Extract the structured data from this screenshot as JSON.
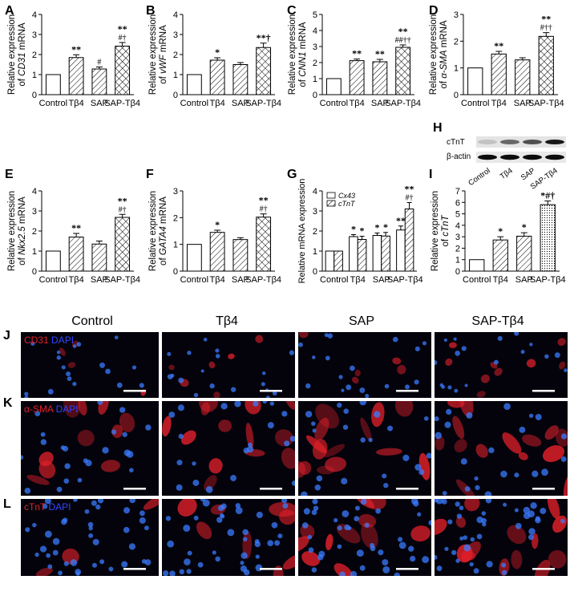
{
  "colors": {
    "bar_edge": "#000000",
    "bar_fill": "#ffffff",
    "cell_bg": "#04030c",
    "stain_red": "#e0202a",
    "stain_blue": "#3344ff",
    "nuclei": "#3a7cff"
  },
  "chart_data": [
    {
      "panel": "A",
      "type": "bar",
      "categories": [
        "Control",
        "Tβ4",
        "SAP",
        "SAP-Tβ4"
      ],
      "values": [
        1.0,
        1.85,
        1.28,
        2.42
      ],
      "errors": [
        0,
        0.14,
        0.1,
        0.18
      ],
      "patterns": [
        "none",
        "hatch",
        "hatch",
        "cross"
      ],
      "marks": [
        "",
        "**",
        "#",
        "**\n#†"
      ],
      "ylabel_pre": "Relative expression",
      "ylabel_of": "of ",
      "ylabel_gene": "CD31",
      "ylabel_post": " mRNA",
      "ylim": [
        0,
        4
      ],
      "yticks": [
        0,
        1,
        2,
        3,
        4
      ]
    },
    {
      "panel": "B",
      "type": "bar",
      "categories": [
        "Control",
        "Tβ4",
        "SAP",
        "SAP-Tβ4"
      ],
      "values": [
        1.0,
        1.72,
        1.5,
        2.35
      ],
      "errors": [
        0,
        0.12,
        0.1,
        0.22
      ],
      "patterns": [
        "none",
        "hatch",
        "hatch",
        "cross"
      ],
      "marks": [
        "",
        "*",
        "",
        "**†"
      ],
      "ylabel_pre": "Relative expression",
      "ylabel_of": "of ",
      "ylabel_gene": "vWF",
      "ylabel_post": " mRNA",
      "ylim": [
        0,
        4
      ],
      "yticks": [
        0,
        1,
        2,
        3,
        4
      ]
    },
    {
      "panel": "C",
      "type": "bar",
      "categories": [
        "Control",
        "Tβ4",
        "SAP",
        "SAP-Tβ4"
      ],
      "values": [
        1.0,
        2.12,
        2.05,
        2.95
      ],
      "errors": [
        0,
        0.1,
        0.15,
        0.15
      ],
      "patterns": [
        "none",
        "hatch",
        "hatch",
        "cross"
      ],
      "marks": [
        "",
        "**",
        "**",
        "**\n##††"
      ],
      "ylabel_pre": "Relative expression",
      "ylabel_of": "of ",
      "ylabel_gene": "CNN1",
      "ylabel_post": " mRNA",
      "ylim": [
        0,
        5
      ],
      "yticks": [
        0,
        1,
        2,
        3,
        4,
        5
      ]
    },
    {
      "panel": "D",
      "type": "bar",
      "categories": [
        "Control",
        "Tβ4",
        "SAP",
        "SAP-Tβ4"
      ],
      "values": [
        1.0,
        1.52,
        1.3,
        2.18
      ],
      "errors": [
        0,
        0.1,
        0.08,
        0.14
      ],
      "patterns": [
        "none",
        "hatch",
        "hatch",
        "cross"
      ],
      "marks": [
        "",
        "**",
        "",
        "**\n#††"
      ],
      "ylabel_pre": "Relative expression",
      "ylabel_of": "of ",
      "ylabel_gene": "α-SMA",
      "ylabel_post": " mRNA",
      "ylim": [
        0,
        3
      ],
      "yticks": [
        0,
        1,
        2,
        3
      ]
    },
    {
      "panel": "E",
      "type": "bar",
      "categories": [
        "Control",
        "Tβ4",
        "SAP",
        "SAP-Tβ4"
      ],
      "values": [
        1.0,
        1.7,
        1.35,
        2.68
      ],
      "errors": [
        0,
        0.18,
        0.15,
        0.15
      ],
      "patterns": [
        "none",
        "hatch",
        "hatch",
        "cross"
      ],
      "marks": [
        "",
        "**",
        "",
        "**\n#†"
      ],
      "ylabel_pre": "Relative expression",
      "ylabel_of": "of ",
      "ylabel_gene": "Nkx2.5",
      "ylabel_post": " mRNA",
      "ylim": [
        0,
        4
      ],
      "yticks": [
        0,
        1,
        2,
        3,
        4
      ]
    },
    {
      "panel": "F",
      "type": "bar",
      "categories": [
        "Control",
        "Tβ4",
        "SAP",
        "SAP-Tβ4"
      ],
      "values": [
        1.0,
        1.45,
        1.18,
        2.02
      ],
      "errors": [
        0,
        0.08,
        0.07,
        0.12
      ],
      "patterns": [
        "none",
        "hatch",
        "hatch",
        "cross"
      ],
      "marks": [
        "",
        "*",
        "",
        "**\n#†"
      ],
      "ylabel_pre": "Relative expression",
      "ylabel_of": "of ",
      "ylabel_gene": "GATA4",
      "ylabel_post": " mRNA",
      "ylim": [
        0,
        3
      ],
      "yticks": [
        0,
        1,
        2,
        3
      ]
    },
    {
      "panel": "G",
      "type": "grouped-bar",
      "categories": [
        "Control",
        "Tβ4",
        "SAP",
        "SAP-Tβ4"
      ],
      "series": [
        {
          "name": "Cx43",
          "values": [
            1.0,
            1.72,
            1.78,
            2.05
          ],
          "errors": [
            0,
            0.1,
            0.12,
            0.2
          ],
          "pattern": "none",
          "marks": [
            "",
            "*",
            "*",
            "**"
          ]
        },
        {
          "name": "cTnT",
          "values": [
            1.0,
            1.58,
            1.75,
            3.1
          ],
          "errors": [
            0,
            0.16,
            0.18,
            0.32
          ],
          "pattern": "hatch",
          "marks": [
            "",
            "*",
            "*",
            "**\n#†"
          ]
        }
      ],
      "ylabel": "Relative mRNA expression",
      "ylim": [
        0,
        4
      ],
      "yticks": [
        0,
        1,
        2,
        3,
        4
      ]
    },
    {
      "panel": "I",
      "type": "bar",
      "categories": [
        "Control",
        "Tβ4",
        "SAP",
        "SAP-Tβ4"
      ],
      "values": [
        1.0,
        2.72,
        3.05,
        5.8
      ],
      "errors": [
        0,
        0.28,
        0.3,
        0.32
      ],
      "patterns": [
        "none",
        "hatch",
        "hatch",
        "dot"
      ],
      "marks": [
        "",
        "*",
        "*",
        "*#†"
      ],
      "ylabel_pre": "Relative expression",
      "ylabel_of": "of ",
      "ylabel_gene": "cTnT",
      "ylabel_post": "",
      "ylim": [
        0,
        7
      ],
      "yticks": [
        0,
        1,
        2,
        3,
        4,
        5,
        6,
        7
      ]
    }
  ],
  "blot": {
    "panel": "H",
    "rows": [
      "cTnT",
      "β-actin"
    ],
    "lanes": [
      "Control",
      "Tβ4",
      "SAP",
      "SAP-Tβ4"
    ],
    "ctnt_intensity": [
      0.15,
      0.55,
      0.65,
      0.9
    ],
    "actin_intensity": [
      0.95,
      0.95,
      0.95,
      0.95
    ]
  },
  "micro": {
    "columns": [
      "Control",
      "Tβ4",
      "SAP",
      "SAP-Tβ4"
    ],
    "rows": [
      {
        "panel": "J",
        "stain_marker": "CD31",
        "stain_dapi": "DAPI"
      },
      {
        "panel": "K",
        "stain_marker": "α-SMA",
        "stain_dapi": "DAPI"
      },
      {
        "panel": "L",
        "stain_marker": "cTnT",
        "stain_dapi": "DAPI"
      }
    ]
  }
}
